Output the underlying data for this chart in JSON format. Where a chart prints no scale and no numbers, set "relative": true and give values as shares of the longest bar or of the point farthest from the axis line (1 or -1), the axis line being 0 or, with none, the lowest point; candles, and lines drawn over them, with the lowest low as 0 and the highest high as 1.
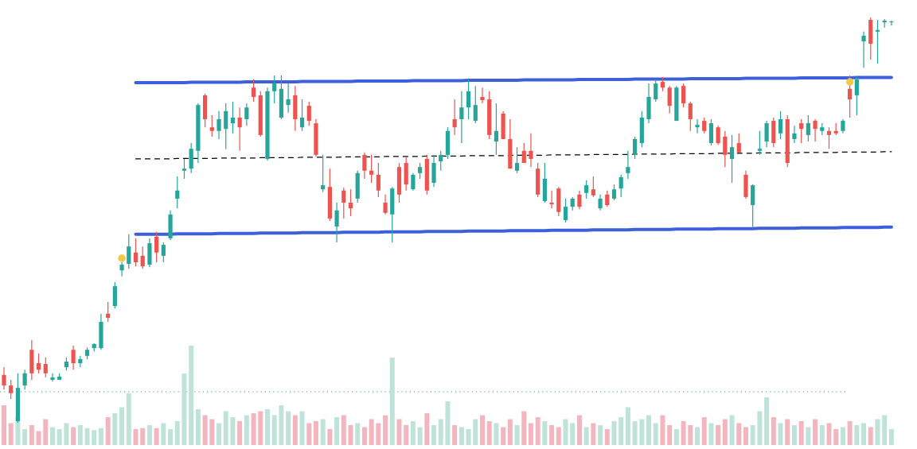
{
  "chart_data": [
    {
      "type": "candlestick",
      "relative": true,
      "tick_labels": false,
      "categories": [
        null,
        null,
        null,
        null,
        null,
        null,
        null,
        null,
        null,
        null,
        null,
        null,
        null,
        null,
        null,
        null,
        null,
        null,
        null,
        null,
        null,
        null,
        null,
        null,
        null,
        null,
        null,
        null,
        null,
        null,
        null,
        null,
        null,
        null,
        null,
        null,
        null,
        null,
        null,
        null,
        null,
        null,
        null,
        null,
        null,
        null,
        null,
        null,
        null,
        null,
        null,
        null,
        null,
        null,
        null,
        null,
        null,
        null,
        null,
        null,
        null,
        null,
        null,
        null,
        null,
        null,
        null,
        null,
        null,
        null,
        null,
        null,
        null,
        null,
        null,
        null,
        null,
        null,
        null,
        null,
        null,
        null,
        null,
        null,
        null,
        null,
        null,
        null,
        null,
        null,
        null,
        null,
        null,
        null,
        null,
        null,
        null,
        null,
        null,
        null,
        null,
        null,
        null,
        null,
        null,
        null,
        null,
        null,
        null,
        null,
        null,
        null,
        null,
        null,
        null,
        null,
        null,
        null,
        null,
        null,
        null,
        null,
        null,
        null,
        null,
        null,
        null,
        null,
        null
      ],
      "ohlc": [
        [
          0.118,
          0.137,
          0.082,
          0.092
        ],
        [
          0.092,
          0.106,
          0.059,
          0.073
        ],
        [
          0.004,
          0.122,
          0,
          0.086
        ],
        [
          0.092,
          0.131,
          0.082,
          0.122
        ],
        [
          0.18,
          0.204,
          0.106,
          0.122
        ],
        [
          0.147,
          0.171,
          0.122,
          0.131
        ],
        [
          0.145,
          0.161,
          0.112,
          0.122
        ],
        [
          0.106,
          0.122,
          0.102,
          0.112
        ],
        [
          0.106,
          0.122,
          0.106,
          0.114
        ],
        [
          0.137,
          0.161,
          0.129,
          0.151
        ],
        [
          0.18,
          0.19,
          0.131,
          0.147
        ],
        [
          0.147,
          0.165,
          0.137,
          0.157
        ],
        [
          0.165,
          0.186,
          0.157,
          0.18
        ],
        [
          0.184,
          0.196,
          0.176,
          0.194
        ],
        [
          0.184,
          0.269,
          0.18,
          0.249
        ],
        [
          0.269,
          0.298,
          0.249,
          0.259
        ],
        [
          0.288,
          0.347,
          0.282,
          0.337
        ],
        [
          0.376,
          0.396,
          0.361,
          0.39
        ],
        [
          0.392,
          0.465,
          0.38,
          0.435
        ],
        [
          0.42,
          0.455,
          0.386,
          0.396
        ],
        [
          0.412,
          0.435,
          0.38,
          0.386
        ],
        [
          0.39,
          0.455,
          0.384,
          0.443
        ],
        [
          0.459,
          0.471,
          0.396,
          0.42
        ],
        [
          0.412,
          0.445,
          0.396,
          0.439
        ],
        [
          0.455,
          0.524,
          0.451,
          0.514
        ],
        [
          0.553,
          0.608,
          0.529,
          0.573
        ],
        [
          0.622,
          0.651,
          0.602,
          0.627
        ],
        [
          0.627,
          0.69,
          0.616,
          0.676
        ],
        [
          0.671,
          0.788,
          0.641,
          0.784
        ],
        [
          0.808,
          0.812,
          0.729,
          0.749
        ],
        [
          0.729,
          0.759,
          0.706,
          0.72
        ],
        [
          0.72,
          0.769,
          0.7,
          0.749
        ],
        [
          0.725,
          0.788,
          0.675,
          0.769
        ],
        [
          0.739,
          0.792,
          0.714,
          0.753
        ],
        [
          0.753,
          0.778,
          0.671,
          0.729
        ],
        [
          0.749,
          0.788,
          0.733,
          0.778
        ],
        [
          0.827,
          0.847,
          0.792,
          0.804
        ],
        [
          0.808,
          0.818,
          0.706,
          0.71
        ],
        [
          0.651,
          0.827,
          0.647,
          0.818
        ],
        [
          0.818,
          0.857,
          0.788,
          0.837
        ],
        [
          0.753,
          0.857,
          0.749,
          0.824
        ],
        [
          0.784,
          0.837,
          0.765,
          0.798
        ],
        [
          0.808,
          0.831,
          0.72,
          0.749
        ],
        [
          0.729,
          0.798,
          0.72,
          0.753
        ],
        [
          0.782,
          0.792,
          0.733,
          0.745
        ],
        [
          0.739,
          0.749,
          0.657,
          0.661
        ],
        [
          0.576,
          0.661,
          0.569,
          0.586
        ],
        [
          0.582,
          0.627,
          0.498,
          0.504
        ],
        [
          0.484,
          0.543,
          0.445,
          0.524
        ],
        [
          0.573,
          0.58,
          0.504,
          0.543
        ],
        [
          0.543,
          0.576,
          0.51,
          0.529
        ],
        [
          0.553,
          0.622,
          0.543,
          0.616
        ],
        [
          0.661,
          0.667,
          0.602,
          0.622
        ],
        [
          0.622,
          0.661,
          0.592,
          0.612
        ],
        [
          0.612,
          0.641,
          0.557,
          0.573
        ],
        [
          0.543,
          0.563,
          0.514,
          0.518
        ],
        [
          0.514,
          0.582,
          0.445,
          0.578
        ],
        [
          0.631,
          0.641,
          0.543,
          0.563
        ],
        [
          0.641,
          0.655,
          0.573,
          0.588
        ],
        [
          0.576,
          0.616,
          0.573,
          0.612
        ],
        [
          0.616,
          0.641,
          0.602,
          0.631
        ],
        [
          0.651,
          0.661,
          0.563,
          0.573
        ],
        [
          0.592,
          0.661,
          0.582,
          0.641
        ],
        [
          0.645,
          0.671,
          0.622,
          0.661
        ],
        [
          0.661,
          0.729,
          0.651,
          0.72
        ],
        [
          0.749,
          0.798,
          0.71,
          0.729
        ],
        [
          0.749,
          0.818,
          0.69,
          0.778
        ],
        [
          0.778,
          0.847,
          0.749,
          0.818
        ],
        [
          0.745,
          0.831,
          0.739,
          0.784
        ],
        [
          0.804,
          0.827,
          0.788,
          0.796
        ],
        [
          0.798,
          0.818,
          0.7,
          0.71
        ],
        [
          0.694,
          0.788,
          0.661,
          0.72
        ],
        [
          0.763,
          0.769,
          0.7,
          0.7
        ],
        [
          0.7,
          0.749,
          0.627,
          0.627
        ],
        [
          0.622,
          0.68,
          0.616,
          0.641
        ],
        [
          0.671,
          0.69,
          0.641,
          0.641
        ],
        [
          0.671,
          0.714,
          0.631,
          0.651
        ],
        [
          0.627,
          0.641,
          0.557,
          0.563
        ],
        [
          0.547,
          0.641,
          0.543,
          0.602
        ],
        [
          0.543,
          0.573,
          0.529,
          0.539
        ],
        [
          0.578,
          0.582,
          0.51,
          0.52
        ],
        [
          0.5,
          0.553,
          0.494,
          0.533
        ],
        [
          0.533,
          0.557,
          0.524,
          0.553
        ],
        [
          0.563,
          0.573,
          0.527,
          0.533
        ],
        [
          0.567,
          0.598,
          0.553,
          0.586
        ],
        [
          0.576,
          0.608,
          0.557,
          0.561
        ],
        [
          0.529,
          0.563,
          0.524,
          0.553
        ],
        [
          0.563,
          0.573,
          0.533,
          0.537
        ],
        [
          0.553,
          0.588,
          0.549,
          0.576
        ],
        [
          0.578,
          0.612,
          0.557,
          0.606
        ],
        [
          0.616,
          0.671,
          0.602,
          0.631
        ],
        [
          0.661,
          0.706,
          0.651,
          0.7
        ],
        [
          0.69,
          0.769,
          0.68,
          0.753
        ],
        [
          0.749,
          0.837,
          0.739,
          0.804
        ],
        [
          0.798,
          0.847,
          0.792,
          0.837
        ],
        [
          0.841,
          0.853,
          0.818,
          0.827
        ],
        [
          0.827,
          0.831,
          0.763,
          0.782
        ],
        [
          0.745,
          0.831,
          0.745,
          0.827
        ],
        [
          0.831,
          0.837,
          0.778,
          0.788
        ],
        [
          0.788,
          0.792,
          0.72,
          0.749
        ],
        [
          0.729,
          0.749,
          0.714,
          0.735
        ],
        [
          0.745,
          0.753,
          0.714,
          0.72
        ],
        [
          0.69,
          0.749,
          0.684,
          0.739
        ],
        [
          0.729,
          0.733,
          0.686,
          0.69
        ],
        [
          0.706,
          0.72,
          0.631,
          0.661
        ],
        [
          0.651,
          0.71,
          0.592,
          0.68
        ],
        [
          0.69,
          0.714,
          0.667,
          0.667
        ],
        [
          0.612,
          0.622,
          0.553,
          0.557
        ],
        [
          0.537,
          0.588,
          0.48,
          0.586
        ],
        [
          0.671,
          0.72,
          0.661,
          0.676
        ],
        [
          0.694,
          0.745,
          0.68,
          0.739
        ],
        [
          0.745,
          0.753,
          0.68,
          0.69
        ],
        [
          0.714,
          0.769,
          0.7,
          0.749
        ],
        [
          0.749,
          0.759,
          0.631,
          0.641
        ],
        [
          0.7,
          0.733,
          0.69,
          0.714
        ],
        [
          0.739,
          0.749,
          0.69,
          0.725
        ],
        [
          0.71,
          0.759,
          0.694,
          0.739
        ],
        [
          0.745,
          0.749,
          0.694,
          0.725
        ],
        [
          0.72,
          0.739,
          0.71,
          0.729
        ],
        [
          0.72,
          0.729,
          0.676,
          0.71
        ],
        [
          0.72,
          0.739,
          0.71,
          0.714
        ],
        [
          0.72,
          0.749,
          0.714,
          0.745
        ],
        [
          0.824,
          0.857,
          0.753,
          0.798
        ],
        [
          0.808,
          0.853,
          0.759,
          0.847
        ],
        [
          0.941,
          0.965,
          0.876,
          0.955
        ],
        [
          0.994,
          1,
          0.896,
          0.935
        ],
        [
          0.965,
          0.994,
          0.886,
          0.969
        ],
        [
          0.988,
          0.996,
          0.975,
          0.992
        ],
        [
          0.988,
          0.992,
          0.98,
          0.99
        ]
      ],
      "colors": [
        "#ef5350",
        "#ef5350",
        "#26a69a",
        "#26a69a",
        "#ef5350",
        "#ef5350",
        "#ef5350",
        "#26a69a",
        "#26a69a",
        "#26a69a",
        "#ef5350",
        "#26a69a",
        "#26a69a",
        "#26a69a",
        "#26a69a",
        "#ef5350",
        "#26a69a",
        "#26a69a",
        "#26a69a",
        "#ef5350",
        "#ef5350",
        "#26a69a",
        "#ef5350",
        "#26a69a",
        "#26a69a",
        "#26a69a",
        "#26a69a",
        "#26a69a",
        "#26a69a",
        "#ef5350",
        "#ef5350",
        "#26a69a",
        "#26a69a",
        "#26a69a",
        "#ef5350",
        "#26a69a",
        "#ef5350",
        "#ef5350",
        "#26a69a",
        "#26a69a",
        "#26a69a",
        "#26a69a",
        "#ef5350",
        "#26a69a",
        "#ef5350",
        "#ef5350",
        "#26a69a",
        "#ef5350",
        "#26a69a",
        "#ef5350",
        "#ef5350",
        "#26a69a",
        "#ef5350",
        "#ef5350",
        "#ef5350",
        "#ef5350",
        "#26a69a",
        "#ef5350",
        "#ef5350",
        "#26a69a",
        "#26a69a",
        "#ef5350",
        "#26a69a",
        "#26a69a",
        "#26a69a",
        "#ef5350",
        "#26a69a",
        "#26a69a",
        "#26a69a",
        "#ef5350",
        "#ef5350",
        "#26a69a",
        "#ef5350",
        "#ef5350",
        "#26a69a",
        "#ef5350",
        "#ef5350",
        "#ef5350",
        "#26a69a",
        "#ef5350",
        "#ef5350",
        "#26a69a",
        "#26a69a",
        "#ef5350",
        "#26a69a",
        "#ef5350",
        "#26a69a",
        "#ef5350",
        "#26a69a",
        "#26a69a",
        "#26a69a",
        "#26a69a",
        "#26a69a",
        "#26a69a",
        "#26a69a",
        "#ef5350",
        "#ef5350",
        "#26a69a",
        "#ef5350",
        "#ef5350",
        "#26a69a",
        "#ef5350",
        "#26a69a",
        "#ef5350",
        "#ef5350",
        "#26a69a",
        "#ef5350",
        "#ef5350",
        "#26a69a",
        "#26a69a",
        "#26a69a",
        "#ef5350",
        "#26a69a",
        "#ef5350",
        "#26a69a",
        "#ef5350",
        "#26a69a",
        "#ef5350",
        "#26a69a",
        "#ef5350",
        "#ef5350",
        "#26a69a",
        "#ef5350",
        "#26a69a",
        "#26a69a",
        "#ef5350",
        "#26a69a",
        "#26a69a",
        "#26a69a"
      ],
      "series": [
        {
          "type": "line",
          "color": "#3d5fd9",
          "line_style": "solid",
          "values": [
            null,
            null,
            null,
            null,
            null,
            null,
            null,
            null,
            null,
            null,
            null,
            null,
            null,
            null,
            null,
            null,
            null,
            null,
            null,
            0.839,
            0.839,
            0.839,
            0.839,
            0.839,
            0.839,
            0.839,
            0.839,
            0.84,
            0.84,
            0.84,
            0.84,
            0.84,
            0.84,
            0.84,
            0.84,
            0.841,
            0.841,
            0.841,
            0.841,
            0.841,
            0.841,
            0.841,
            0.841,
            0.842,
            0.842,
            0.842,
            0.842,
            0.842,
            0.842,
            0.842,
            0.842,
            0.843,
            0.843,
            0.843,
            0.843,
            0.843,
            0.843,
            0.843,
            0.843,
            0.844,
            0.844,
            0.844,
            0.844,
            0.844,
            0.844,
            0.844,
            0.844,
            0.845,
            0.845,
            0.845,
            0.845,
            0.845,
            0.845,
            0.845,
            0.845,
            0.846,
            0.846,
            0.846,
            0.846,
            0.846,
            0.846,
            0.846,
            0.846,
            0.847,
            0.847,
            0.847,
            0.847,
            0.847,
            0.847,
            0.847,
            0.847,
            0.848,
            0.848,
            0.848,
            0.848,
            0.848,
            0.848,
            0.848,
            0.848,
            0.849,
            0.849,
            0.849,
            0.849,
            0.849,
            0.849,
            0.849,
            0.849,
            0.85,
            0.85,
            0.85,
            0.85,
            0.85,
            0.85,
            0.85,
            0.85,
            0.851,
            0.851,
            0.851,
            0.851,
            0.851,
            0.851,
            0.851,
            0.851,
            0.852,
            0.852,
            0.852,
            0.852,
            0.852,
            0.852
          ]
        },
        {
          "type": "line",
          "color": "#3d5fd9",
          "line_style": "solid",
          "values": [
            null,
            null,
            null,
            null,
            null,
            null,
            null,
            null,
            null,
            null,
            null,
            null,
            null,
            null,
            null,
            null,
            null,
            null,
            null,
            0.465,
            0.465,
            0.465,
            0.465,
            0.465,
            0.465,
            0.466,
            0.466,
            0.466,
            0.466,
            0.466,
            0.466,
            0.467,
            0.467,
            0.467,
            0.467,
            0.467,
            0.467,
            0.468,
            0.468,
            0.468,
            0.468,
            0.468,
            0.468,
            0.469,
            0.469,
            0.469,
            0.469,
            0.469,
            0.469,
            0.47,
            0.47,
            0.47,
            0.47,
            0.47,
            0.47,
            0.471,
            0.471,
            0.471,
            0.471,
            0.471,
            0.471,
            0.472,
            0.472,
            0.472,
            0.472,
            0.472,
            0.472,
            0.473,
            0.473,
            0.473,
            0.473,
            0.473,
            0.473,
            0.474,
            0.474,
            0.474,
            0.474,
            0.474,
            0.474,
            0.475,
            0.475,
            0.475,
            0.475,
            0.475,
            0.475,
            0.476,
            0.476,
            0.476,
            0.476,
            0.476,
            0.476,
            0.477,
            0.477,
            0.477,
            0.477,
            0.477,
            0.477,
            0.478,
            0.478,
            0.478,
            0.478,
            0.478,
            0.478,
            0.479,
            0.479,
            0.479,
            0.479,
            0.479,
            0.479,
            0.48,
            0.48,
            0.48,
            0.48,
            0.48,
            0.48,
            0.481,
            0.481,
            0.481,
            0.481,
            0.481,
            0.481,
            0.482,
            0.482,
            0.482,
            0.482,
            0.482,
            0.482,
            0.483,
            0.483
          ]
        },
        {
          "type": "line",
          "color": "#000000",
          "line_style": "dashed",
          "values": [
            null,
            null,
            null,
            null,
            null,
            null,
            null,
            null,
            null,
            null,
            null,
            null,
            null,
            null,
            null,
            null,
            null,
            null,
            null,
            0.651,
            0.651,
            0.651,
            0.651,
            0.651,
            0.651,
            0.652,
            0.652,
            0.652,
            0.652,
            0.652,
            0.652,
            0.653,
            0.653,
            0.653,
            0.653,
            0.653,
            0.653,
            0.654,
            0.654,
            0.654,
            0.654,
            0.654,
            0.654,
            0.655,
            0.655,
            0.655,
            0.655,
            0.655,
            0.655,
            0.656,
            0.656,
            0.656,
            0.656,
            0.656,
            0.656,
            0.657,
            0.657,
            0.657,
            0.657,
            0.657,
            0.657,
            0.658,
            0.658,
            0.658,
            0.658,
            0.658,
            0.658,
            0.659,
            0.659,
            0.659,
            0.659,
            0.659,
            0.659,
            0.66,
            0.66,
            0.66,
            0.66,
            0.66,
            0.66,
            0.661,
            0.661,
            0.661,
            0.661,
            0.661,
            0.661,
            0.662,
            0.662,
            0.662,
            0.662,
            0.662,
            0.662,
            0.663,
            0.663,
            0.663,
            0.663,
            0.663,
            0.663,
            0.664,
            0.664,
            0.664,
            0.664,
            0.664,
            0.664,
            0.665,
            0.665,
            0.665,
            0.665,
            0.665,
            0.665,
            0.666,
            0.666,
            0.666,
            0.666,
            0.666,
            0.666,
            0.667,
            0.667,
            0.667,
            0.667,
            0.667,
            0.667,
            0.668,
            0.668,
            0.668,
            0.668,
            0.668,
            0.668,
            0.669,
            0.669
          ]
        },
        {
          "type": "scatter",
          "color": "#f2c94c",
          "marker": "circle",
          "values": [
            null,
            null,
            null,
            null,
            null,
            null,
            null,
            null,
            null,
            null,
            null,
            null,
            null,
            null,
            null,
            null,
            null,
            0.406,
            null,
            null,
            null,
            null,
            null,
            null,
            null,
            null,
            null,
            null,
            null,
            null,
            null,
            null,
            null,
            null,
            null,
            null,
            null,
            null,
            null,
            null,
            null,
            null,
            null,
            null,
            null,
            null,
            null,
            null,
            null,
            null,
            null,
            null,
            null,
            null,
            null,
            null,
            null,
            null,
            null,
            null,
            null,
            null,
            null,
            null,
            null,
            null,
            null,
            null,
            null,
            null,
            null,
            null,
            null,
            null,
            null,
            null,
            null,
            null,
            null,
            null,
            null,
            null,
            null,
            null,
            null,
            null,
            null,
            null,
            null,
            null,
            null,
            null,
            null,
            null,
            null,
            null,
            null,
            null,
            null,
            null,
            null,
            null,
            null,
            null,
            null,
            null,
            null,
            null,
            null,
            null,
            null,
            null,
            null,
            null,
            null,
            null,
            null,
            null,
            null,
            null,
            null,
            null,
            0.841,
            null,
            null,
            null,
            null,
            null,
            null
          ]
        }
      ]
    },
    {
      "type": "bar",
      "relative": true,
      "tick_labels": false,
      "categories": [
        null,
        null,
        null,
        null,
        null,
        null,
        null,
        null,
        null,
        null,
        null,
        null,
        null,
        null,
        null,
        null,
        null,
        null,
        null,
        null,
        null,
        null,
        null,
        null,
        null,
        null,
        null,
        null,
        null,
        null,
        null,
        null,
        null,
        null,
        null,
        null,
        null,
        null,
        null,
        null,
        null,
        null,
        null,
        null,
        null,
        null,
        null,
        null,
        null,
        null,
        null,
        null,
        null,
        null,
        null,
        null,
        null,
        null,
        null,
        null,
        null,
        null,
        null,
        null,
        null,
        null,
        null,
        null,
        null,
        null,
        null,
        null,
        null,
        null,
        null,
        null,
        null,
        null,
        null,
        null,
        null,
        null,
        null,
        null,
        null,
        null,
        null,
        null,
        null,
        null,
        null,
        null,
        null,
        null,
        null,
        null,
        null,
        null,
        null,
        null,
        null,
        null,
        null,
        null,
        null,
        null,
        null,
        null,
        null,
        null,
        null,
        null,
        null,
        null,
        null,
        null,
        null,
        null,
        null,
        null,
        null,
        null,
        null,
        null,
        null,
        null,
        null,
        null,
        null
      ],
      "values": [
        0.4,
        0.22,
        0.28,
        0.16,
        0.2,
        0.14,
        0.26,
        0.18,
        0.16,
        0.22,
        0.18,
        0.2,
        0.17,
        0.15,
        0.17,
        0.28,
        0.32,
        0.38,
        0.52,
        0.16,
        0.17,
        0.2,
        0.17,
        0.22,
        0.16,
        0.24,
        0.72,
        1.0,
        0.36,
        0.3,
        0.26,
        0.22,
        0.34,
        0.28,
        0.24,
        0.3,
        0.32,
        0.34,
        0.36,
        0.3,
        0.4,
        0.34,
        0.3,
        0.34,
        0.22,
        0.24,
        0.26,
        0.16,
        0.28,
        0.3,
        0.2,
        0.22,
        0.18,
        0.26,
        0.22,
        0.3,
        0.88,
        0.26,
        0.2,
        0.24,
        0.18,
        0.32,
        0.2,
        0.26,
        0.44,
        0.2,
        0.18,
        0.16,
        0.26,
        0.3,
        0.24,
        0.22,
        0.18,
        0.26,
        0.2,
        0.34,
        0.22,
        0.28,
        0.24,
        0.2,
        0.18,
        0.26,
        0.22,
        0.3,
        0.18,
        0.22,
        0.2,
        0.16,
        0.24,
        0.28,
        0.38,
        0.24,
        0.26,
        0.3,
        0.22,
        0.3,
        0.2,
        0.16,
        0.24,
        0.2,
        0.18,
        0.28,
        0.22,
        0.2,
        0.26,
        0.3,
        0.22,
        0.18,
        0.2,
        0.34,
        0.48,
        0.28,
        0.22,
        0.26,
        0.2,
        0.24,
        0.18,
        0.26,
        0.2,
        0.22,
        0.16,
        0.18,
        0.24,
        0.2,
        0.22,
        0.18,
        0.26,
        0.3,
        0.16
      ],
      "colors": [
        "#f4b6be",
        "#f4b6be",
        "#bfe3d8",
        "#bfe3d8",
        "#f4b6be",
        "#f4b6be",
        "#f4b6be",
        "#bfe3d8",
        "#bfe3d8",
        "#bfe3d8",
        "#f4b6be",
        "#bfe3d8",
        "#bfe3d8",
        "#bfe3d8",
        "#bfe3d8",
        "#f4b6be",
        "#bfe3d8",
        "#bfe3d8",
        "#bfe3d8",
        "#f4b6be",
        "#f4b6be",
        "#bfe3d8",
        "#f4b6be",
        "#bfe3d8",
        "#bfe3d8",
        "#bfe3d8",
        "#bfe3d8",
        "#bfe3d8",
        "#bfe3d8",
        "#f4b6be",
        "#f4b6be",
        "#bfe3d8",
        "#bfe3d8",
        "#bfe3d8",
        "#f4b6be",
        "#bfe3d8",
        "#f4b6be",
        "#f4b6be",
        "#bfe3d8",
        "#bfe3d8",
        "#bfe3d8",
        "#bfe3d8",
        "#f4b6be",
        "#bfe3d8",
        "#f4b6be",
        "#f4b6be",
        "#bfe3d8",
        "#f4b6be",
        "#bfe3d8",
        "#f4b6be",
        "#f4b6be",
        "#bfe3d8",
        "#f4b6be",
        "#f4b6be",
        "#f4b6be",
        "#f4b6be",
        "#bfe3d8",
        "#f4b6be",
        "#f4b6be",
        "#bfe3d8",
        "#bfe3d8",
        "#f4b6be",
        "#bfe3d8",
        "#bfe3d8",
        "#bfe3d8",
        "#f4b6be",
        "#bfe3d8",
        "#bfe3d8",
        "#bfe3d8",
        "#f4b6be",
        "#f4b6be",
        "#bfe3d8",
        "#f4b6be",
        "#f4b6be",
        "#bfe3d8",
        "#f4b6be",
        "#f4b6be",
        "#f4b6be",
        "#bfe3d8",
        "#f4b6be",
        "#f4b6be",
        "#bfe3d8",
        "#bfe3d8",
        "#f4b6be",
        "#bfe3d8",
        "#f4b6be",
        "#bfe3d8",
        "#f4b6be",
        "#bfe3d8",
        "#bfe3d8",
        "#bfe3d8",
        "#bfe3d8",
        "#bfe3d8",
        "#bfe3d8",
        "#bfe3d8",
        "#f4b6be",
        "#f4b6be",
        "#bfe3d8",
        "#f4b6be",
        "#f4b6be",
        "#bfe3d8",
        "#f4b6be",
        "#bfe3d8",
        "#f4b6be",
        "#f4b6be",
        "#bfe3d8",
        "#f4b6be",
        "#f4b6be",
        "#bfe3d8",
        "#bfe3d8",
        "#bfe3d8",
        "#f4b6be",
        "#bfe3d8",
        "#f4b6be",
        "#bfe3d8",
        "#f4b6be",
        "#bfe3d8",
        "#f4b6be",
        "#bfe3d8",
        "#f4b6be",
        "#f4b6be",
        "#bfe3d8",
        "#f4b6be",
        "#bfe3d8",
        "#bfe3d8",
        "#f4b6be",
        "#bfe3d8",
        "#bfe3d8",
        "#bfe3d8"
      ],
      "ref_lines": [
        {
          "axis": "y",
          "value": 0.536,
          "color": "#4f8f80",
          "line_style": "dotted"
        }
      ]
    }
  ]
}
